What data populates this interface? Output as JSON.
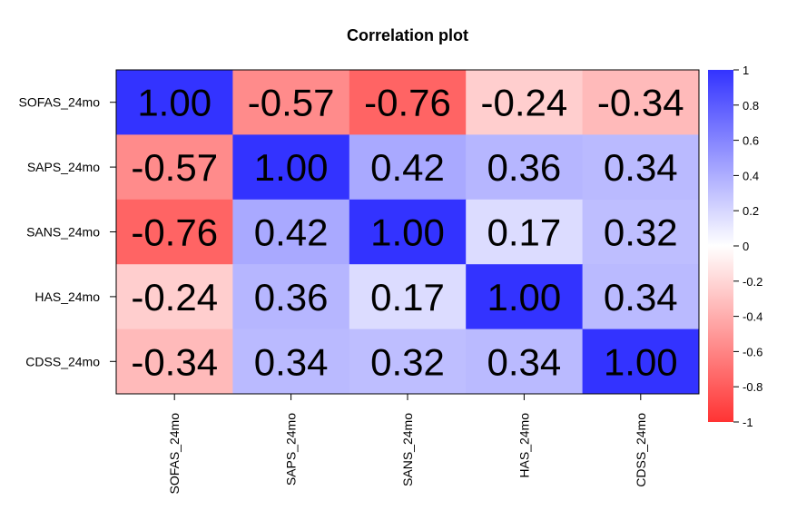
{
  "chart_data": {
    "type": "heatmap",
    "title": "Correlation plot",
    "rows": [
      "SOFAS_24mo",
      "SAPS_24mo",
      "SANS_24mo",
      "HAS_24mo",
      "CDSS_24mo"
    ],
    "columns": [
      "SOFAS_24mo",
      "SAPS_24mo",
      "SANS_24mo",
      "HAS_24mo",
      "CDSS_24mo"
    ],
    "values": [
      [
        1.0,
        -0.57,
        -0.76,
        -0.24,
        -0.34
      ],
      [
        -0.57,
        1.0,
        0.42,
        0.36,
        0.34
      ],
      [
        -0.76,
        0.42,
        1.0,
        0.17,
        0.32
      ],
      [
        -0.24,
        0.36,
        0.17,
        1.0,
        0.34
      ],
      [
        -0.34,
        0.34,
        0.32,
        0.34,
        1.0
      ]
    ],
    "value_labels": [
      [
        "1.00",
        "-0.57",
        "-0.76",
        "-0.24",
        "-0.34"
      ],
      [
        "-0.57",
        "1.00",
        "0.42",
        "0.36",
        "0.34"
      ],
      [
        "-0.76",
        "0.42",
        "1.00",
        "0.17",
        "0.32"
      ],
      [
        "-0.24",
        "0.36",
        "0.17",
        "1.00",
        "0.34"
      ],
      [
        "-0.34",
        "0.34",
        "0.32",
        "0.34",
        "1.00"
      ]
    ],
    "color_range": [
      -1,
      1
    ],
    "colors": {
      "low": "#ff3333",
      "mid": "#ffffff",
      "high": "#3333ff"
    },
    "colorbar_ticks": [
      {
        "value": 1,
        "label": "1"
      },
      {
        "value": 0.8,
        "label": "0.8"
      },
      {
        "value": 0.6,
        "label": "0.6"
      },
      {
        "value": 0.4,
        "label": "0.4"
      },
      {
        "value": 0.2,
        "label": "0.2"
      },
      {
        "value": 0,
        "label": "0"
      },
      {
        "value": -0.2,
        "label": "-0.2"
      },
      {
        "value": -0.4,
        "label": "-0.4"
      },
      {
        "value": -0.6,
        "label": "-0.6"
      },
      {
        "value": -0.8,
        "label": "-0.8"
      },
      {
        "value": -1,
        "label": "-1"
      }
    ],
    "legend_position": "right"
  }
}
